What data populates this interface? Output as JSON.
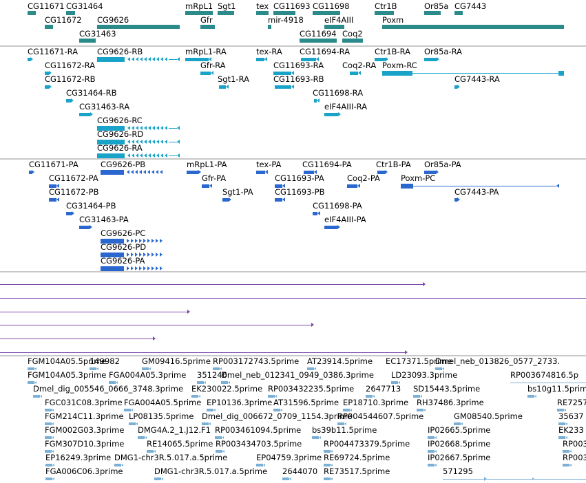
{
  "colors": {
    "gene": "#2b8a8a",
    "transcript_rna": "#1aa3c8",
    "transcript_protein": "#2a68d0",
    "alignment": "#7a4aa8",
    "est": "#7aafd6",
    "separator": "#c8c8c8"
  },
  "tracks": {
    "genes": {
      "features": [
        {
          "label": "CG11671",
          "row": 0
        },
        {
          "label": "CG31464",
          "row": 0
        },
        {
          "label": "mRpL1",
          "row": 0
        },
        {
          "label": "Sgt1",
          "row": 0
        },
        {
          "label": "tex",
          "row": 0
        },
        {
          "label": "CG11693",
          "row": 0
        },
        {
          "label": "CG11698",
          "row": 0
        },
        {
          "label": "Ctr1B",
          "row": 0
        },
        {
          "label": "Or85a",
          "row": 0
        },
        {
          "label": "CG7443",
          "row": 0
        },
        {
          "label": "CG11672",
          "row": 1
        },
        {
          "label": "CG9626",
          "row": 1
        },
        {
          "label": "Gfr",
          "row": 1
        },
        {
          "label": "mir-4918",
          "row": 1
        },
        {
          "label": "eIF4AIII",
          "row": 1
        },
        {
          "label": "Poxm",
          "row": 1
        },
        {
          "label": "CG31463",
          "row": 2
        },
        {
          "label": "CG11694",
          "row": 2
        },
        {
          "label": "Coq2",
          "row": 2
        }
      ]
    },
    "transcripts_rna": {
      "features": [
        "CG11671-RA",
        "CG9626-RB",
        "mRpL1-RA",
        "tex-RA",
        "CG11694-RA",
        "Ctr1B-RA",
        "Or85a-RA",
        "CG11672-RA",
        "Gfr-RA",
        "CG11693-RA",
        "Coq2-RA",
        "Poxm-RC",
        "CG11672-RB",
        "Sgt1-RA",
        "CG11693-RB",
        "CG7443-RA",
        "CG31464-RB",
        "CG11698-RA",
        "CG31463-RA",
        "eIF4AIII-RA",
        "CG9626-RC",
        "CG9626-RD",
        "CG9626-RA"
      ]
    },
    "transcripts_protein": {
      "features": [
        "CG11671-PA",
        "CG9626-PB",
        "mRpL1-PA",
        "tex-PA",
        "CG11694-PA",
        "Ctr1B-PA",
        "Or85a-PA",
        "CG11672-PA",
        "Gfr-PA",
        "CG11693-PA",
        "Coq2-PA",
        "Poxm-PC",
        "CG11672-PB",
        "Sgt1-PA",
        "CG11693-PB",
        "CG7443-PA",
        "CG31464-PB",
        "CG11698-PA",
        "CG31463-PA",
        "eIF4AIII-PA",
        "CG9626-PC",
        "CG9626-PD",
        "CG9626-PA"
      ]
    },
    "ests": {
      "rows": [
        [
          "FGM104A05.5prime",
          "149982",
          "GM09416.5prime",
          "RP003172743.5prime",
          "AT23914.5prime",
          "EC17371.5prime",
          "Dmel_neb_013826_0577_2733."
        ],
        [
          "FGM104A05.3prime",
          "FGA004A05.3prime",
          "351246",
          "Dmel_neb_012341_0949_0386.3prime",
          "LD23093.3prime",
          "RP003674816.5p"
        ],
        [
          "Dmel_dig_005546_0666_3748.3prime",
          "EK230022.5prime",
          "RP003432235.5prime",
          "2647713",
          "SD15443.5prime",
          "bs10g11.5prim"
        ],
        [
          "FGC031C08.3prime",
          "FGA004A05.5prime",
          "EP10136.3prime",
          "AT31596.5prime",
          "EP18710.3prime",
          "RH37486.3prime",
          "RE7257"
        ],
        [
          "FGM214C11.3prime",
          "LP08135.5prime",
          "Dmel_dig_006672_0709_1154.3prime",
          "RP004544607.5prime",
          "GM08540.5prime",
          "35637"
        ],
        [
          "FGM002G03.3prime",
          "DMG4A.2_1.J12.F1",
          "RP003461094.5prime",
          "bs39b11.5prime",
          "IP02665.5prime",
          "EK233"
        ],
        [
          "FGM307D10.3prime",
          "RE14065.5prime",
          "RP003434703.5prime",
          "RP004473379.5prime",
          "IP02668.5prime",
          "RP003"
        ],
        [
          "EP16249.3prime",
          "DMG1-chr3R.5.017.a.5prime",
          "EP04759.3prime",
          "RE69724.5prime",
          "IP02667.5prime",
          "RP003"
        ],
        [
          "FGA006C06.3prime",
          "DMG1-chr3R.5.017.a.5prime",
          "2644070",
          "RE73517.5prime",
          "571295"
        ]
      ]
    }
  }
}
